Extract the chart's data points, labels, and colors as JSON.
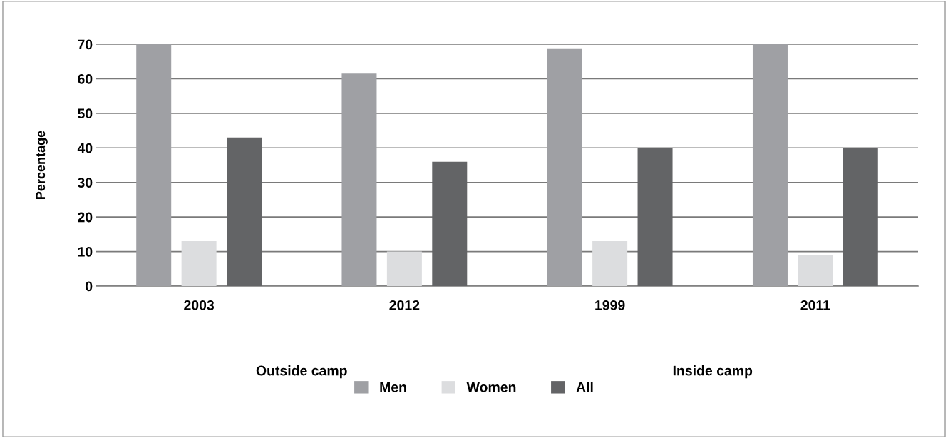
{
  "chart_data": {
    "type": "bar",
    "ylabel": "Percentage",
    "categories": [
      "2003",
      "2012",
      "1999",
      "2011"
    ],
    "series": [
      {
        "name": "Men",
        "color": "#9fa0a4",
        "values": [
          70,
          61.5,
          68.8,
          70
        ]
      },
      {
        "name": "Women",
        "color": "#dcdddf",
        "values": [
          13,
          10,
          13,
          9
        ]
      },
      {
        "name": "All",
        "color": "#636466",
        "values": [
          43,
          36,
          40,
          40
        ]
      }
    ],
    "annotations": [
      "Outside camp",
      "Inside camp"
    ],
    "ylim": [
      0,
      70
    ],
    "yticks": [
      0,
      10,
      20,
      30,
      40,
      50,
      60,
      70
    ],
    "grid": "y",
    "legend": "bottom"
  }
}
